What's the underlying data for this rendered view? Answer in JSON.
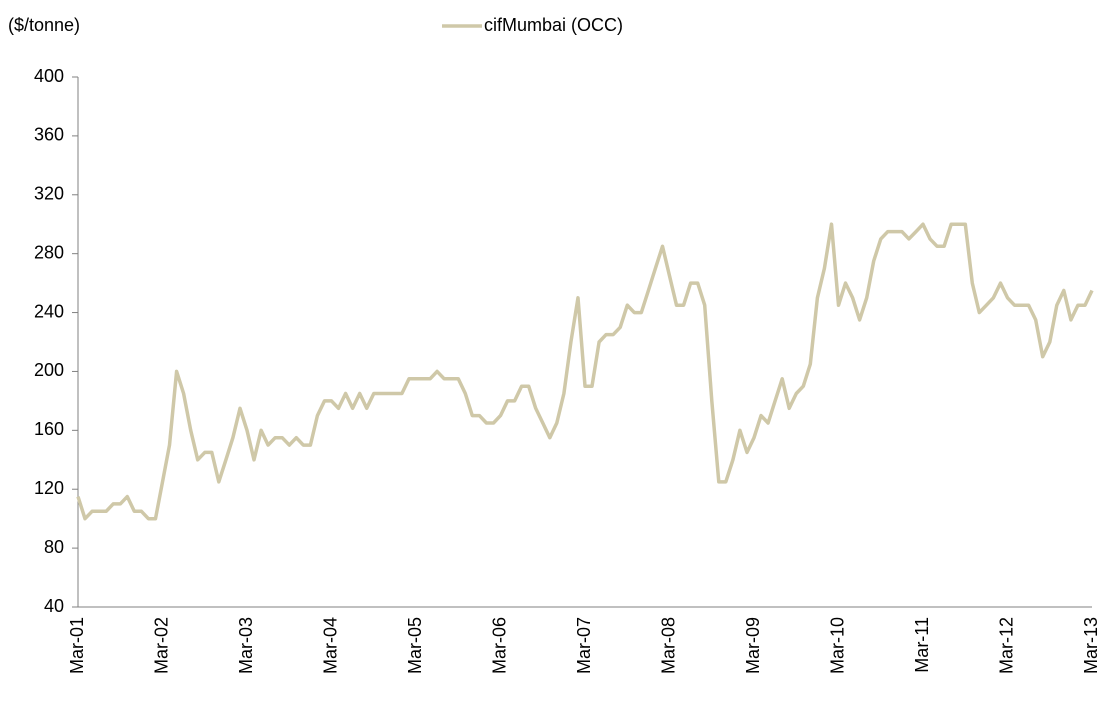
{
  "chart_data": {
    "type": "line",
    "y_label": "($/tonne)",
    "categories": [
      "Mar-01",
      null,
      null,
      null,
      null,
      null,
      null,
      null,
      null,
      null,
      null,
      null,
      "Mar-02",
      null,
      null,
      null,
      null,
      null,
      null,
      null,
      null,
      null,
      null,
      null,
      "Mar-03",
      null,
      null,
      null,
      null,
      null,
      null,
      null,
      null,
      null,
      null,
      null,
      "Mar-04",
      null,
      null,
      null,
      null,
      null,
      null,
      null,
      null,
      null,
      null,
      null,
      "Mar-05",
      null,
      null,
      null,
      null,
      null,
      null,
      null,
      null,
      null,
      null,
      null,
      "Mar-06",
      null,
      null,
      null,
      null,
      null,
      null,
      null,
      null,
      null,
      null,
      null,
      "Mar-07",
      null,
      null,
      null,
      null,
      null,
      null,
      null,
      null,
      null,
      null,
      null,
      "Mar-08",
      null,
      null,
      null,
      null,
      null,
      null,
      null,
      null,
      null,
      null,
      null,
      "Mar-09",
      null,
      null,
      null,
      null,
      null,
      null,
      null,
      null,
      null,
      null,
      null,
      "Mar-10",
      null,
      null,
      null,
      null,
      null,
      null,
      null,
      null,
      null,
      null,
      null,
      "Mar-11",
      null,
      null,
      null,
      null,
      null,
      null,
      null,
      null,
      null,
      null,
      null,
      "Mar-12",
      null,
      null,
      null,
      null,
      null,
      null,
      null,
      null,
      null,
      null,
      null,
      "Mar-13"
    ],
    "series": [
      {
        "name": "cifMumbai (OCC)",
        "color": "#cfc8a8",
        "values": [
          115,
          100,
          105,
          105,
          105,
          110,
          110,
          115,
          105,
          105,
          100,
          100,
          125,
          150,
          200,
          185,
          160,
          140,
          145,
          145,
          125,
          140,
          155,
          175,
          160,
          140,
          160,
          150,
          155,
          155,
          150,
          155,
          150,
          150,
          170,
          180,
          180,
          175,
          185,
          175,
          185,
          175,
          185,
          185,
          185,
          185,
          185,
          195,
          195,
          195,
          195,
          200,
          195,
          195,
          195,
          185,
          170,
          170,
          165,
          165,
          170,
          180,
          180,
          190,
          190,
          175,
          165,
          155,
          165,
          185,
          220,
          250,
          190,
          190,
          220,
          225,
          225,
          230,
          245,
          240,
          240,
          255,
          270,
          285,
          265,
          245,
          245,
          260,
          260,
          245,
          180,
          125,
          125,
          140,
          160,
          145,
          155,
          170,
          165,
          180,
          195,
          175,
          185,
          190,
          205,
          250,
          270,
          300,
          245,
          260,
          250,
          235,
          250,
          275,
          290,
          295,
          295,
          295,
          290,
          295,
          300,
          290,
          285,
          285,
          300,
          300,
          300,
          260,
          240,
          245,
          250,
          260,
          250,
          245,
          245,
          245,
          235,
          210,
          220,
          245,
          255,
          235,
          245,
          245,
          255
        ]
      }
    ],
    "ylim": [
      40,
      400
    ],
    "yticks": [
      40,
      80,
      120,
      160,
      200,
      240,
      280,
      320,
      360,
      400
    ],
    "legend": "top"
  }
}
